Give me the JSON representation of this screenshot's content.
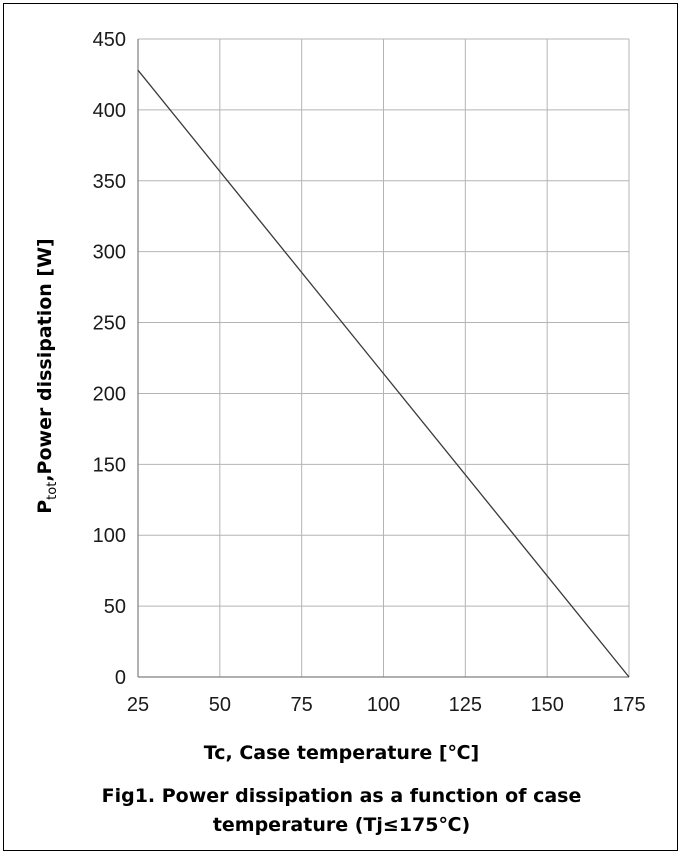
{
  "chart_data": {
    "type": "line",
    "title": "",
    "xlabel": "Tc, Case temperature [℃]",
    "ylabel": "Power dissipation [W]",
    "ylabel_symbol": "P",
    "ylabel_subscript": "tot",
    "ylabel_sep": ",",
    "caption_line1": "Fig1. Power dissipation as a function of case",
    "caption_line2": "temperature (Tj≤175℃)",
    "xlim": [
      25,
      175
    ],
    "ylim": [
      0,
      450
    ],
    "x_ticks": [
      25,
      50,
      75,
      100,
      125,
      150,
      175
    ],
    "y_ticks": [
      0,
      50,
      100,
      150,
      200,
      250,
      300,
      350,
      400,
      450
    ],
    "grid": true,
    "series": [
      {
        "x": [
          25,
          175
        ],
        "y": [
          428,
          0
        ]
      }
    ],
    "colors": {
      "line": "#3a3a3a",
      "grid": "#b4b4b4",
      "axis": "#7f7f7f"
    }
  }
}
